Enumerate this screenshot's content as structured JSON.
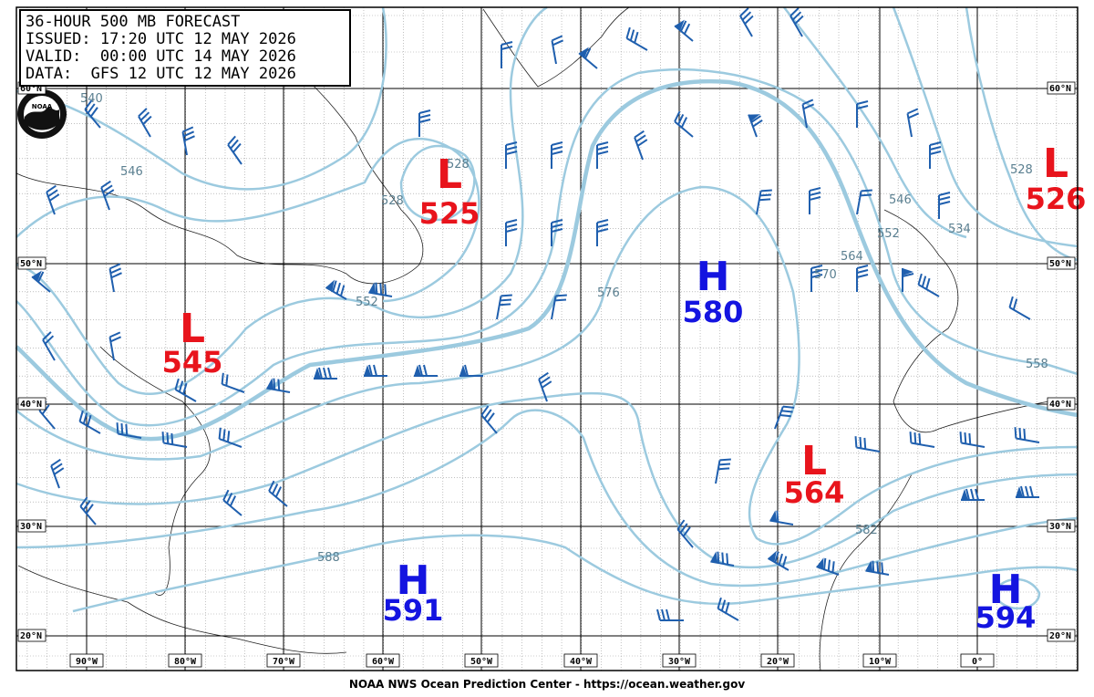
{
  "header": {
    "lines": [
      "36-HOUR 500 MB FORECAST",
      "ISSUED: 17:20 UTC 12 MAY 2026",
      "VALID:  00:00 UTC 14 MAY 2026",
      "DATA:  GFS 12 UTC 12 MAY 2026"
    ]
  },
  "logo": "NOAA",
  "latitude_labels": [
    "60°N",
    "50°N",
    "40°N",
    "30°N",
    "20°N"
  ],
  "longitude_labels": [
    "90°W",
    "80°W",
    "70°W",
    "60°W",
    "50°W",
    "40°W",
    "30°W",
    "20°W",
    "10°W",
    "0°"
  ],
  "systems": [
    {
      "type": "L",
      "value": 525
    },
    {
      "type": "L",
      "value": 545
    },
    {
      "type": "H",
      "value": 580
    },
    {
      "type": "L",
      "value": 564
    },
    {
      "type": "H",
      "value": 591
    },
    {
      "type": "H",
      "value": 594
    },
    {
      "type": "L",
      "value": 526
    }
  ],
  "contour_labels": [
    540,
    546,
    528,
    528,
    552,
    576,
    570,
    564,
    558,
    588,
    582,
    534,
    528,
    546,
    552
  ],
  "footer": "NOAA NWS Ocean Prediction Center - https://ocean.weather.gov"
}
